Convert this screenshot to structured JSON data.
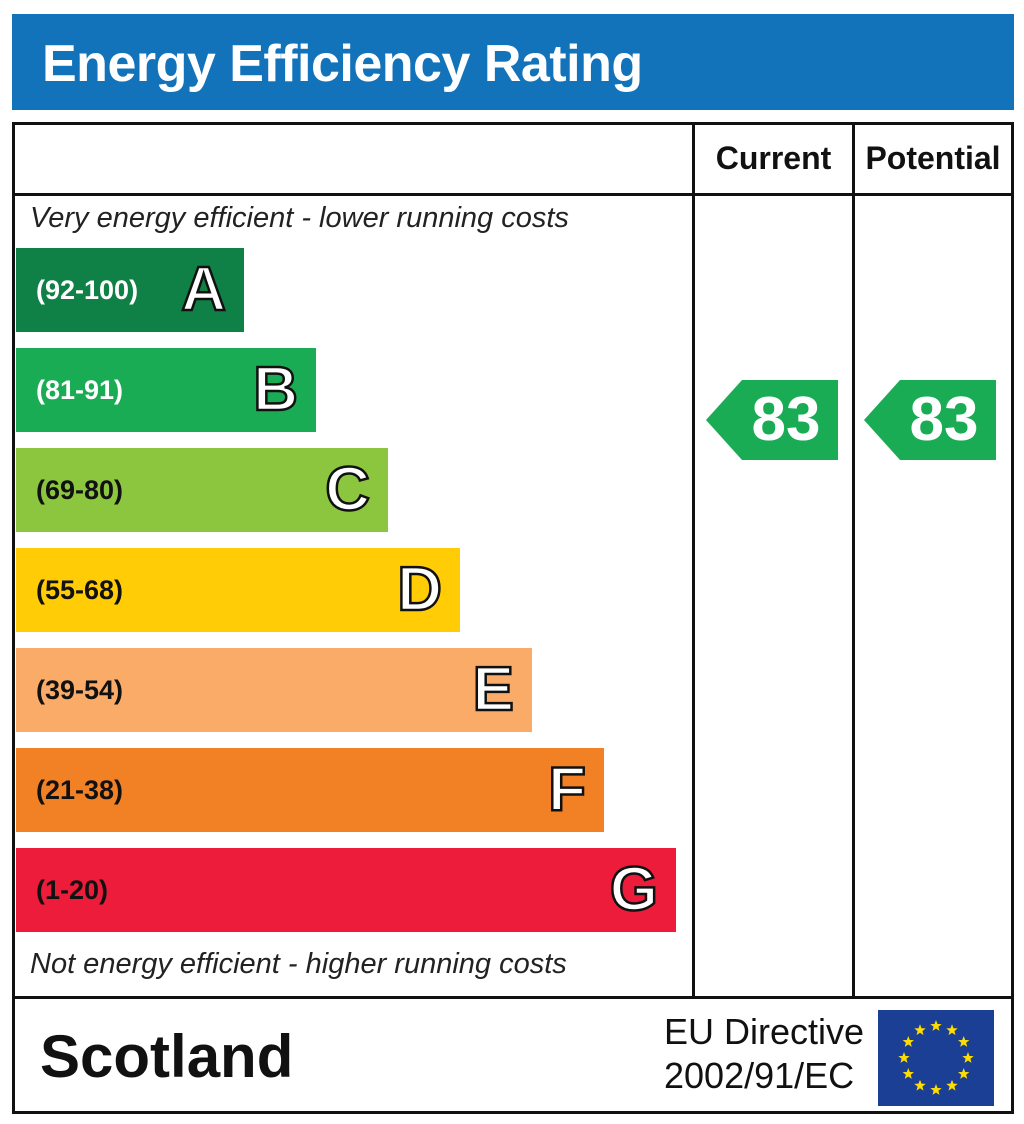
{
  "header": {
    "title": "Energy Efficiency Rating"
  },
  "columns": {
    "current": "Current",
    "potential": "Potential"
  },
  "notes": {
    "top": "Very energy efficient - lower running costs",
    "bottom": "Not energy efficient - higher running costs"
  },
  "footer": {
    "region": "Scotland",
    "directive_line1": "EU Directive",
    "directive_line2": "2002/91/EC",
    "flag_icon": "eu-flag-icon"
  },
  "colors": {
    "header_bg": "#1273bb",
    "rating_arrow": "#1aac55"
  },
  "chart_data": {
    "type": "bar",
    "categories": [
      "A",
      "B",
      "C",
      "D",
      "E",
      "F",
      "G"
    ],
    "bands": [
      {
        "letter": "A",
        "range": "(92-100)",
        "color": "#0f8046",
        "range_text_color": "#ffffff"
      },
      {
        "letter": "B",
        "range": "(81-91)",
        "color": "#1aac55",
        "range_text_color": "#ffffff"
      },
      {
        "letter": "C",
        "range": "(69-80)",
        "color": "#8cc63f",
        "range_text_color": "#111111"
      },
      {
        "letter": "D",
        "range": "(55-68)",
        "color": "#ffcc05",
        "range_text_color": "#111111"
      },
      {
        "letter": "E",
        "range": "(39-54)",
        "color": "#f9ab67",
        "range_text_color": "#111111"
      },
      {
        "letter": "F",
        "range": "(21-38)",
        "color": "#f28024",
        "range_text_color": "#111111"
      },
      {
        "letter": "G",
        "range": "(1-20)",
        "color": "#ec1c3a",
        "range_text_color": "#111111"
      }
    ],
    "ratings": {
      "current": {
        "value": 83,
        "band": "B"
      },
      "potential": {
        "value": 83,
        "band": "B"
      }
    }
  }
}
